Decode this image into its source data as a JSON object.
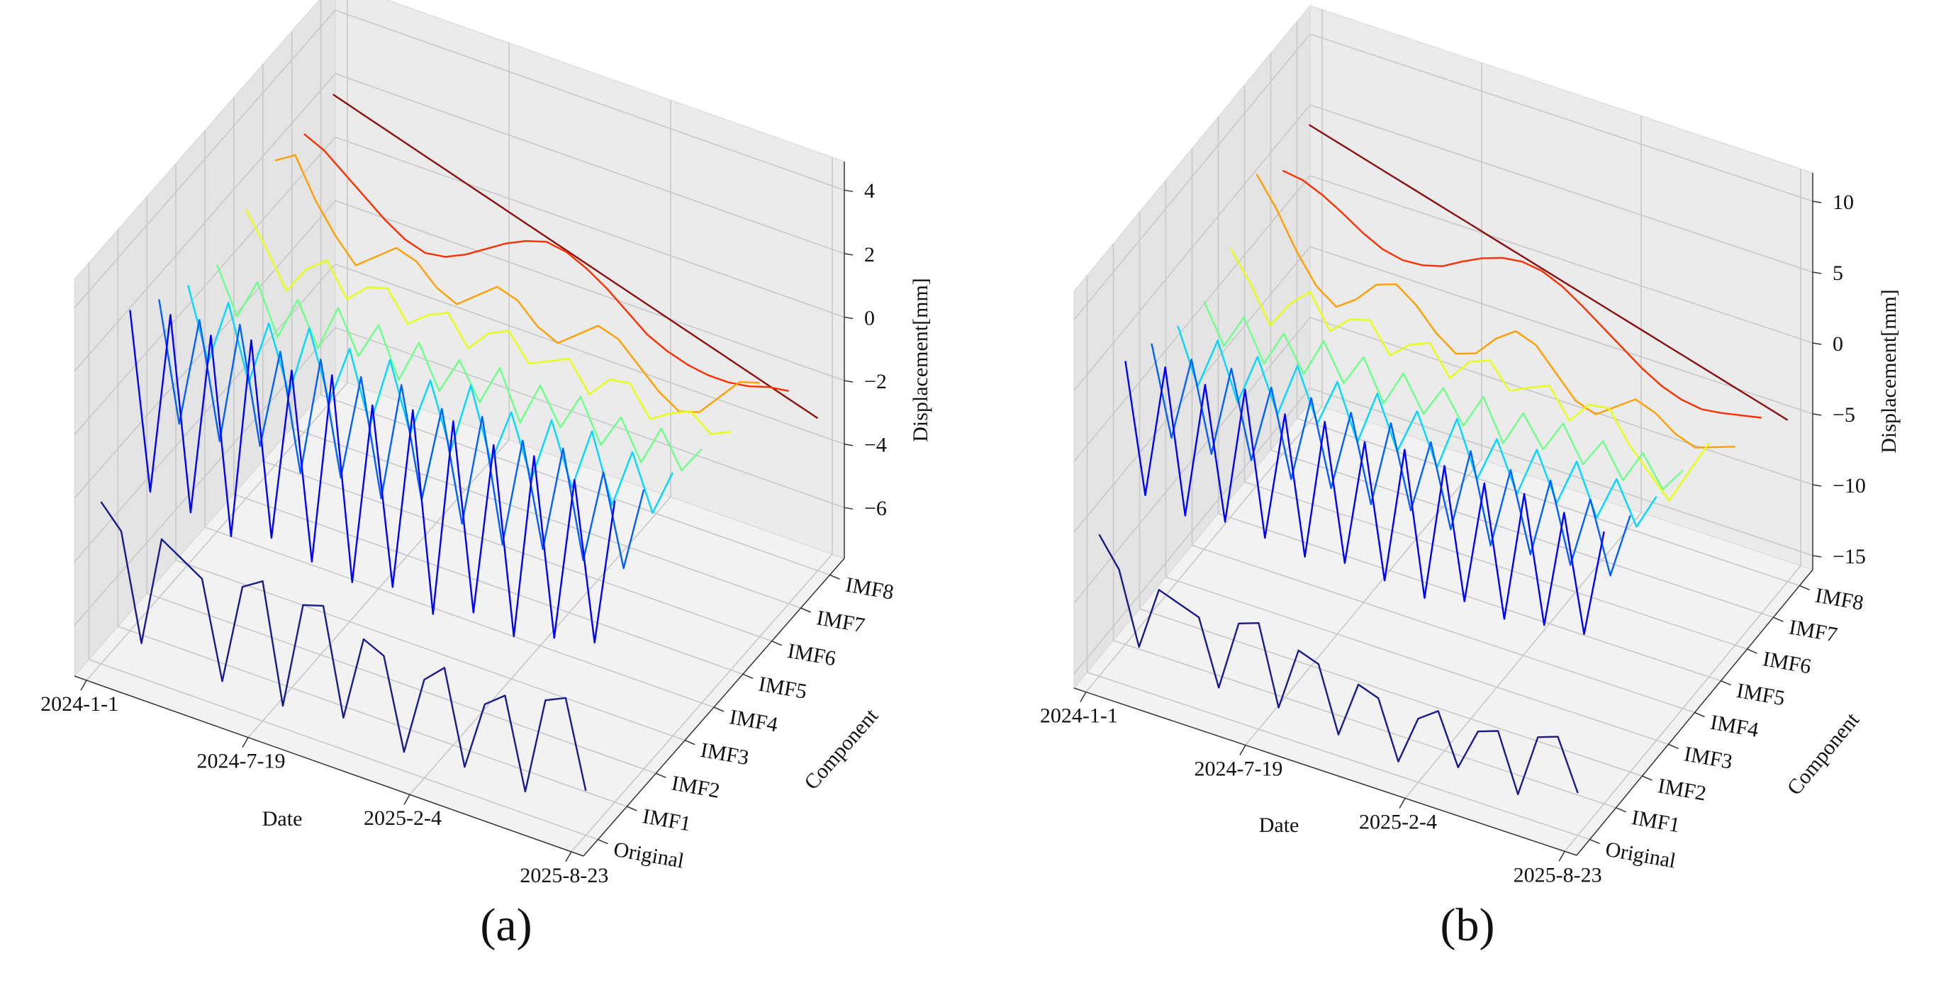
{
  "chart_data": [
    {
      "type": "line3d",
      "caption": "(a)",
      "xlabel": "Date",
      "ylabel": "Component",
      "zlabel": "Displacement[mm]",
      "x": [
        0,
        25,
        50,
        75,
        100,
        125,
        150,
        175,
        200,
        225,
        250,
        275,
        300,
        325,
        350,
        375,
        400,
        425,
        450,
        475,
        500,
        525,
        550,
        575,
        600
      ],
      "xlim": [
        -15,
        615
      ],
      "xticks": [
        {
          "value": 0,
          "label": "2024-1-1"
        },
        {
          "value": 200,
          "label": "2024-7-19"
        },
        {
          "value": 400,
          "label": "2025-2-4"
        },
        {
          "value": 600,
          "label": "2025-8-23"
        }
      ],
      "zlim": [
        -7.6,
        4.9
      ],
      "zticks": [
        {
          "value": -6,
          "label": "−6"
        },
        {
          "value": -4,
          "label": "−4"
        },
        {
          "value": -2,
          "label": "−2"
        },
        0,
        2,
        4
      ],
      "grid": true,
      "series": [
        {
          "name": "Original",
          "color": "#1a1a8c",
          "values": [
            -2.5,
            -3.2,
            -6.5,
            -3.0,
            -3.4,
            -3.8,
            -6.8,
            -3.6,
            -3.2,
            -6.9,
            -3.5,
            -3.3,
            -6.6,
            -3.9,
            -4.2,
            -7.0,
            -4.5,
            -3.9,
            -6.8,
            -4.6,
            -4.1,
            -6.9,
            -3.8,
            -3.5,
            -6.2
          ]
        },
        {
          "name": "IMF1",
          "color": "#0000ff",
          "values": [
            2.5,
            -3.0,
            2.8,
            -3.2,
            2.6,
            -3.5,
            2.9,
            -3.1,
            2.4,
            -3.4,
            2.7,
            -3.6,
            2.2,
            -3.3,
            2.5,
            -3.7,
            2.6,
            -3.2,
            2.3,
            -3.5,
            2.4,
            -3.1,
            2.1,
            -2.8,
            1.9
          ]
        },
        {
          "name": "IMF2",
          "color": "#0060ff",
          "values": [
            1.8,
            -1.9,
            1.6,
            -2.0,
            1.9,
            -1.7,
            1.5,
            -2.1,
            1.7,
            -1.8,
            1.6,
            -2.0,
            1.8,
            -1.6,
            1.5,
            -1.9,
            1.7,
            -2.1,
            1.4,
            -1.8,
            1.6,
            -1.7,
            1.3,
            -1.5,
            1.2
          ]
        },
        {
          "name": "IMF3",
          "color": "#00d8ff",
          "values": [
            1.2,
            -1.0,
            1.1,
            -1.2,
            0.9,
            -1.1,
            1.2,
            -0.9,
            1.0,
            -1.2,
            1.1,
            -1.0,
            0.9,
            -1.1,
            1.2,
            -1.0,
            0.8,
            -1.1,
            1.0,
            -0.9,
            1.1,
            -1.0,
            0.9,
            -0.8,
            0.7
          ]
        },
        {
          "name": "IMF4",
          "color": "#6dff8a",
          "values": [
            0.8,
            -0.6,
            0.7,
            -0.8,
            0.6,
            -0.7,
            0.8,
            -0.5,
            0.7,
            -0.8,
            0.6,
            -0.7,
            0.5,
            -0.6,
            0.7,
            -0.8,
            0.6,
            -0.5,
            0.7,
            -0.6,
            0.5,
            -0.7,
            0.6,
            -0.5,
            0.4
          ]
        },
        {
          "name": "IMF5",
          "color": "#e8ff10",
          "values": [
            1.5,
            0.5,
            -0.6,
            0.3,
            0.8,
            -0.2,
            0.4,
            0.6,
            -0.3,
            0.2,
            0.5,
            -0.4,
            0.3,
            0.6,
            -0.2,
            0.1,
            0.4,
            -0.5,
            0.2,
            0.3,
            -0.6,
            -0.2,
            0.1,
            -0.4,
            -0.1
          ]
        },
        {
          "name": "IMF6",
          "color": "#ff9f00",
          "values": [
            2.0,
            2.4,
            1.2,
            0.3,
            -0.4,
            0.1,
            0.6,
            0.4,
            -0.2,
            -0.5,
            0.0,
            0.5,
            0.3,
            -0.3,
            -0.6,
            -0.1,
            0.4,
            0.2,
            -0.4,
            -1.0,
            -1.4,
            -1.2,
            -0.5,
            0.2,
            0.4
          ]
        },
        {
          "name": "IMF7",
          "color": "#ff3000",
          "values": [
            1.8,
            1.5,
            1.0,
            0.5,
            0.0,
            -0.4,
            -0.6,
            -0.5,
            -0.2,
            0.2,
            0.6,
            0.9,
            1.1,
            1.0,
            0.7,
            0.3,
            -0.2,
            -0.7,
            -1.0,
            -1.2,
            -1.3,
            -1.3,
            -1.2,
            -1.0,
            -0.9
          ]
        },
        {
          "name": "IMF8",
          "color": "#8b1010",
          "values": [
            2.0,
            1.8,
            1.6,
            1.4,
            1.2,
            1.0,
            0.8,
            0.6,
            0.4,
            0.2,
            0.0,
            -0.2,
            -0.4,
            -0.6,
            -0.8,
            -1.0,
            -1.2,
            -1.4,
            -1.6,
            -1.8,
            -2.0,
            -2.2,
            -2.4,
            -2.6,
            -2.8
          ]
        }
      ]
    },
    {
      "type": "line3d",
      "caption": "(b)",
      "xlabel": "Date",
      "ylabel": "Component",
      "zlabel": "Displacement[mm]",
      "x": [
        0,
        25,
        50,
        75,
        100,
        125,
        150,
        175,
        200,
        225,
        250,
        275,
        300,
        325,
        350,
        375,
        400,
        425,
        450,
        475,
        500,
        525,
        550,
        575,
        600
      ],
      "xlim": [
        -15,
        615
      ],
      "xticks": [
        {
          "value": 0,
          "label": "2024-1-1"
        },
        {
          "value": 200,
          "label": "2024-7-19"
        },
        {
          "value": 400,
          "label": "2025-2-4"
        },
        {
          "value": 600,
          "label": "2025-8-23"
        }
      ],
      "zlim": [
        -16,
        12
      ],
      "zticks": [
        {
          "value": -15,
          "label": "−15"
        },
        {
          "value": -10,
          "label": "−10"
        },
        {
          "value": -5,
          "label": "−5"
        },
        0,
        5,
        10
      ],
      "grid": true,
      "series": [
        {
          "name": "Original",
          "color": "#1a1a8c",
          "values": [
            -6,
            -8,
            -13,
            -8.5,
            -9,
            -9.5,
            -14,
            -9,
            -8.5,
            -14,
            -9.5,
            -10,
            -14.5,
            -10.5,
            -11,
            -15,
            -11.5,
            -10.5,
            -14,
            -11,
            -10.5,
            -14.5,
            -10,
            -9.5,
            -13
          ]
        },
        {
          "name": "IMF1",
          "color": "#0000ff",
          "values": [
            4,
            -5,
            4.5,
            -5.5,
            4.2,
            -5,
            4.8,
            -5.2,
            4,
            -5.6,
            4.4,
            -5.1,
            3.9,
            -5.4,
            4.3,
            -5.7,
            4.1,
            -5.0,
            3.8,
            -5.3,
            4.0,
            -4.8,
            3.6,
            -4.5,
            3.2
          ]
        },
        {
          "name": "IMF2",
          "color": "#0060ff",
          "values": [
            3,
            -3.2,
            2.8,
            -3.4,
            3.1,
            -2.9,
            2.7,
            -3.3,
            2.9,
            -3.0,
            2.8,
            -3.2,
            3.0,
            -2.7,
            2.6,
            -3.1,
            2.9,
            -3.3,
            2.5,
            -3.0,
            2.7,
            -2.8,
            2.3,
            -2.6,
            2.1
          ]
        },
        {
          "name": "IMF3",
          "color": "#00d8ff",
          "values": [
            2,
            -1.8,
            1.9,
            -2.0,
            1.7,
            -1.9,
            2.0,
            -1.6,
            1.8,
            -2.0,
            1.9,
            -1.7,
            1.6,
            -1.9,
            2.0,
            -1.8,
            1.5,
            -1.9,
            1.7,
            -1.6,
            1.8,
            -1.7,
            1.5,
            -1.4,
            1.2
          ]
        },
        {
          "name": "IMF4",
          "color": "#6dff8a",
          "values": [
            1.5,
            -1.2,
            1.3,
            -1.5,
            1.1,
            -1.3,
            1.5,
            -1.0,
            1.3,
            -1.5,
            1.1,
            -1.3,
            1.0,
            -1.2,
            1.3,
            -1.5,
            1.1,
            -1.0,
            1.3,
            -1.1,
            1.0,
            -1.3,
            1.1,
            -1.0,
            0.8
          ]
        },
        {
          "name": "IMF5",
          "color": "#e8ff10",
          "values": [
            3,
            1,
            -1.5,
            0.5,
            1.8,
            -0.5,
            0.8,
            1.2,
            -0.8,
            0.4,
            1.0,
            -1.0,
            0.6,
            1.2,
            -0.5,
            0.2,
            0.8,
            -1.2,
            0.4,
            0.6,
            -1.5,
            -3,
            -4.5,
            -2,
            0.5
          ]
        },
        {
          "name": "IMF6",
          "color": "#ff9f00",
          "values": [
            6,
            4,
            1.5,
            -0.5,
            -1.5,
            -0.5,
            1.0,
            1.5,
            0.5,
            -1.0,
            -2.0,
            -1.5,
            0.0,
            1.0,
            0.5,
            -1.0,
            -2.5,
            -3.0,
            -2.0,
            -1.0,
            -1.5,
            -2.5,
            -3.0,
            -2.5,
            -2.0
          ]
        },
        {
          "name": "IMF7",
          "color": "#ff3000",
          "values": [
            4,
            3.8,
            3.2,
            2.4,
            1.5,
            0.8,
            0.5,
            0.6,
            1.0,
            1.8,
            2.5,
            3.0,
            3.2,
            3.0,
            2.4,
            1.5,
            0.5,
            -0.5,
            -1.5,
            -2.3,
            -2.8,
            -3.0,
            -2.8,
            -2.5,
            -2.2
          ]
        },
        {
          "name": "IMF8",
          "color": "#8b1010",
          "values": [
            5,
            4.6,
            4.2,
            3.8,
            3.4,
            3.0,
            2.6,
            2.2,
            1.8,
            1.4,
            1.0,
            0.6,
            0.2,
            -0.2,
            -0.6,
            -1.0,
            -1.4,
            -1.8,
            -2.2,
            -2.6,
            -3.0,
            -3.4,
            -3.8,
            -4.2,
            -4.6
          ]
        }
      ]
    }
  ]
}
